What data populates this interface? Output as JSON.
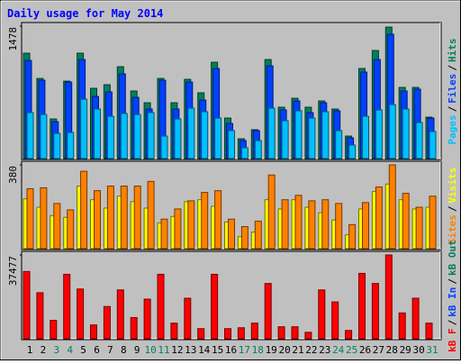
{
  "title": "Daily usage for May 2014",
  "legend_separator": "/",
  "chart_data": [
    {
      "type": "bar",
      "series": [
        {
          "name": "Hits",
          "color": "#00805c",
          "values": [
            1176,
            894,
            442,
            864,
            1176,
            784,
            824,
            1025,
            754,
            623,
            894,
            623,
            884,
            734,
            1075,
            452,
            221,
            322,
            1105,
            573,
            673,
            573,
            643,
            553,
            251,
            1005,
            1206,
            1467,
            794,
            794,
            462
          ]
        },
        {
          "name": "Files",
          "color": "#0040ff",
          "values": [
            1095,
            874,
            412,
            854,
            1105,
            693,
            744,
            945,
            683,
            553,
            874,
            553,
            854,
            653,
            1005,
            392,
            201,
            312,
            1035,
            543,
            643,
            513,
            623,
            533,
            231,
            965,
            1105,
            1387,
            754,
            774,
            452
          ]
        },
        {
          "name": "Pages",
          "color": "#00c0ff",
          "values": [
            513,
            492,
            281,
            291,
            663,
            553,
            472,
            503,
            492,
            513,
            251,
            442,
            563,
            523,
            452,
            312,
            121,
            201,
            563,
            422,
            533,
            452,
            523,
            312,
            151,
            472,
            543,
            603,
            553,
            402,
            302
          ]
        }
      ],
      "ylim": [
        0,
        1478
      ],
      "yticks": [
        1478
      ]
    },
    {
      "type": "bar",
      "series": [
        {
          "name": "Visits",
          "color": "#ffff00",
          "values": [
            226,
            188,
            150,
            142,
            284,
            222,
            184,
            238,
            213,
            184,
            117,
            146,
            213,
            222,
            192,
            121,
            54,
            75,
            222,
            180,
            222,
            188,
            163,
            130,
            63,
            180,
            259,
            293,
            222,
            180,
            188
          ]
        },
        {
          "name": "Sites",
          "color": "#ff8000",
          "values": [
            272,
            276,
            205,
            176,
            351,
            263,
            284,
            284,
            284,
            305,
            134,
            180,
            217,
            255,
            263,
            134,
            100,
            125,
            334,
            222,
            242,
            217,
            222,
            205,
            109,
            209,
            280,
            380,
            251,
            188,
            238
          ]
        }
      ],
      "ylim": [
        0,
        380
      ],
      "yticks": [
        380
      ]
    },
    {
      "type": "bar",
      "series": [
        {
          "name": "kB Out",
          "color": "#00805c"
        },
        {
          "name": "kB In",
          "color": "#0040ff"
        },
        {
          "name": "kB F",
          "color": "#ff0000",
          "values": [
            30076,
            20600,
            8240,
            28840,
            22250,
            6180,
            14420,
            21840,
            9480,
            17720,
            28840,
            7000,
            18130,
            4530,
            28840,
            4530,
            4940,
            7000,
            24720,
            5360,
            5360,
            2880,
            21840,
            16480,
            3710,
            29250,
            24720,
            37477,
            11540,
            18130,
            7000
          ]
        }
      ],
      "ylim": [
        0,
        37477
      ],
      "yticks": [
        37477
      ],
      "categories": [
        "1",
        "2",
        "3",
        "4",
        "5",
        "6",
        "7",
        "8",
        "9",
        "10",
        "11",
        "12",
        "13",
        "14",
        "15",
        "16",
        "17",
        "18",
        "19",
        "20",
        "21",
        "22",
        "23",
        "24",
        "25",
        "26",
        "27",
        "28",
        "29",
        "30",
        "31"
      ],
      "category_colors": [
        "#000000",
        "#000000",
        "#00805c",
        "#00805c",
        "#000000",
        "#000000",
        "#000000",
        "#000000",
        "#000000",
        "#00805c",
        "#00805c",
        "#000000",
        "#000000",
        "#000000",
        "#000000",
        "#000000",
        "#00805c",
        "#00805c",
        "#000000",
        "#000000",
        "#000000",
        "#000000",
        "#000000",
        "#00805c",
        "#00805c",
        "#000000",
        "#000000",
        "#000000",
        "#000000",
        "#000000",
        "#00805c"
      ]
    }
  ]
}
